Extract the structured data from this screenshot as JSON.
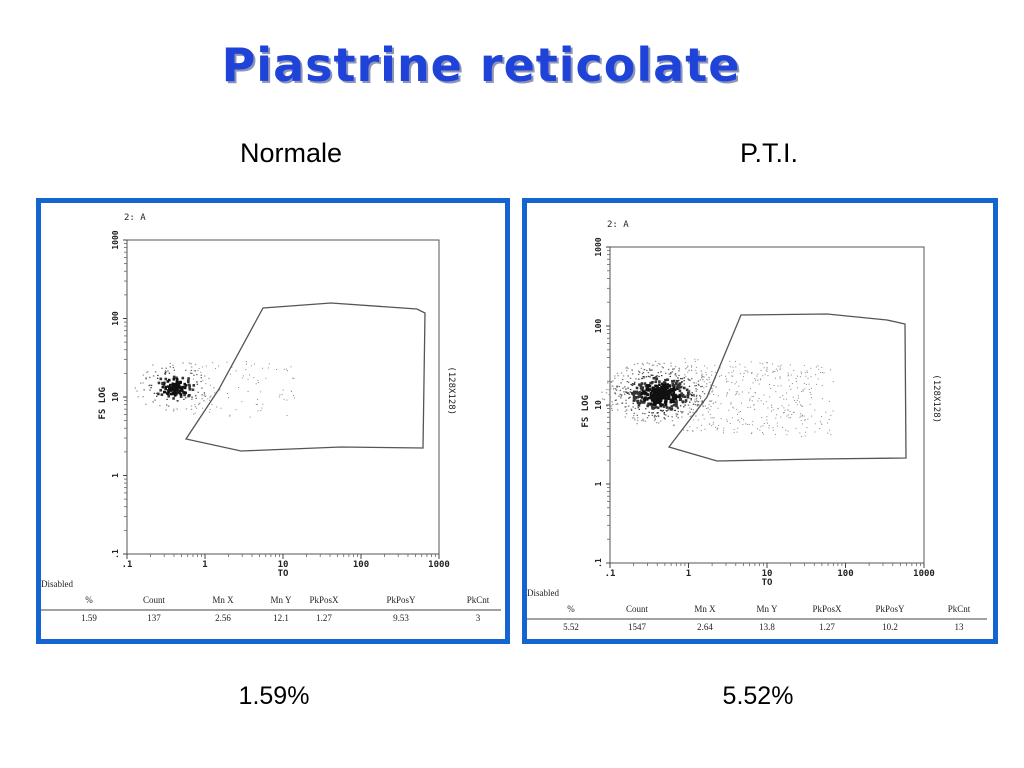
{
  "title": "Piastrine reticolate",
  "panels": [
    {
      "label": "Normale",
      "percent_label": "1.59%",
      "plot_tag": "2: A",
      "y_axis_label": "FS LOG",
      "x_axis_label": "TO",
      "side_label": "(128X128)",
      "x_ticks": [
        ".1",
        "1",
        "10",
        "100",
        "1000"
      ],
      "y_ticks": [
        "1000",
        "100",
        "10",
        "1",
        ".1"
      ],
      "stats_title": "Disabled",
      "stats_headers": [
        "%",
        "Count",
        "Mn X",
        "Mn Y",
        "PkPosX",
        "PkPosY",
        "PkCnt"
      ],
      "stats_values": [
        "1.59",
        "137",
        "2.56",
        "12.1",
        "1.27",
        "9.53",
        "3"
      ]
    },
    {
      "label": "P.T.I.",
      "percent_label": "5.52%",
      "plot_tag": "2: A",
      "y_axis_label": "FS LOG",
      "x_axis_label": "TO",
      "side_label": "(128X128)",
      "x_ticks": [
        ".1",
        "1",
        "10",
        "100",
        "1000"
      ],
      "y_ticks": [
        "1000",
        "100",
        "10",
        "1",
        ".1"
      ],
      "stats_title": "Disabled",
      "stats_headers": [
        "%",
        "Count",
        "Mn X",
        "Mn Y",
        "PkPosX",
        "PkPosY",
        "PkCnt"
      ],
      "stats_values": [
        "5.52",
        "1547",
        "2.64",
        "13.8",
        "1.27",
        "10.2",
        "13"
      ]
    }
  ],
  "chart_data": [
    {
      "type": "scatter",
      "title": "",
      "xlabel": "TO",
      "ylabel": "FS LOG",
      "x_scale": "log",
      "y_scale": "log",
      "xlim": [
        0.1,
        1000
      ],
      "ylim": [
        0.1,
        1000
      ],
      "peak": {
        "x": 1.27,
        "y": 9.53
      },
      "stats": {
        "percent": 1.59,
        "count": 137,
        "mean_x": 2.56,
        "mean_y": 12.1,
        "peak_pos_x": 1.27,
        "peak_pos_y": 9.53,
        "peak_count": 3
      }
    },
    {
      "type": "scatter",
      "title": "",
      "xlabel": "TO",
      "ylabel": "FS LOG",
      "x_scale": "log",
      "y_scale": "log",
      "xlim": [
        0.1,
        1000
      ],
      "ylim": [
        0.1,
        1000
      ],
      "peak": {
        "x": 1.27,
        "y": 10.2
      },
      "stats": {
        "percent": 5.52,
        "count": 1547,
        "mean_x": 2.64,
        "mean_y": 13.8,
        "peak_pos_x": 1.27,
        "peak_pos_y": 10.2,
        "peak_count": 13
      }
    }
  ]
}
